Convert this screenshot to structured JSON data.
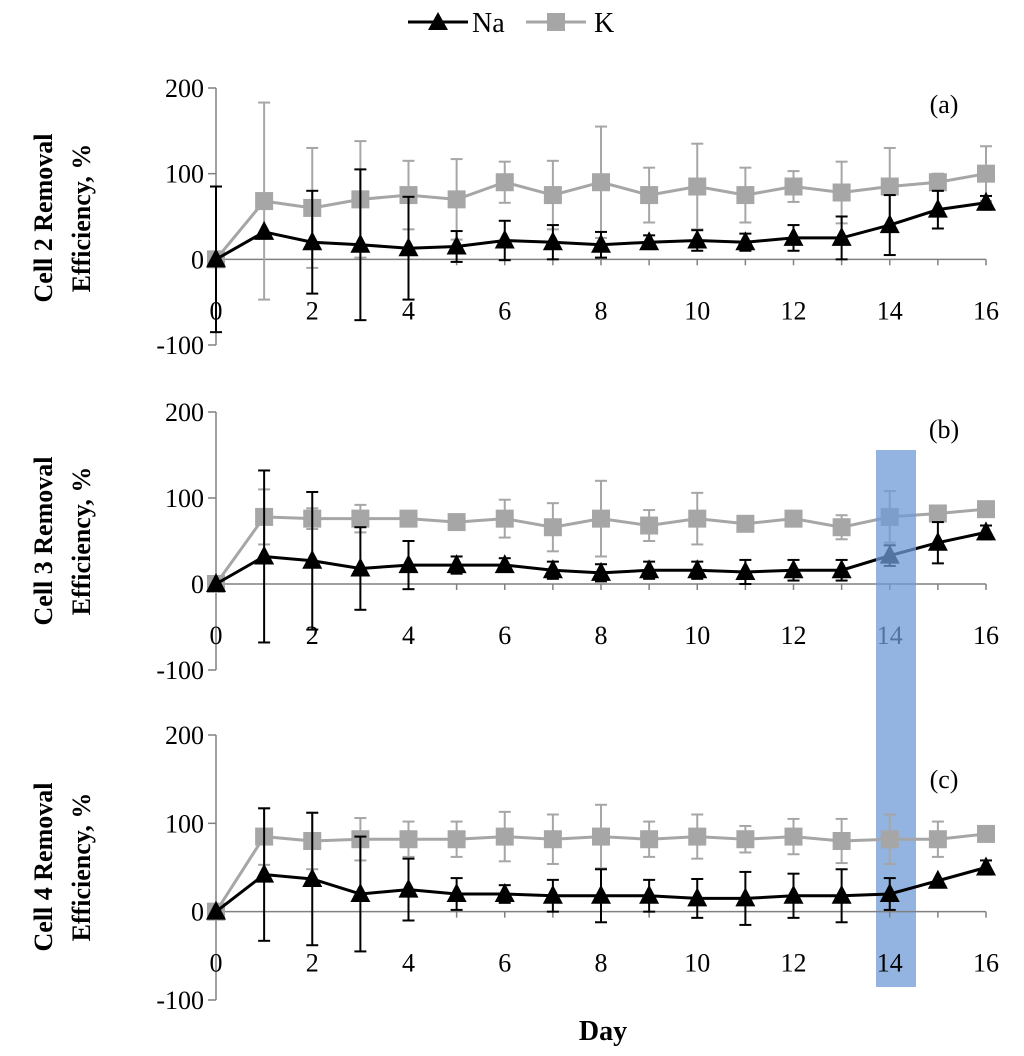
{
  "legend": {
    "na_label": "Na",
    "k_label": "K"
  },
  "colors": {
    "na": "#000000",
    "k": "#a6a6a6",
    "highlight": "#6f9bd5"
  },
  "xlabel": "Day",
  "chart_data": [
    {
      "type": "line",
      "panel_label": "(a)",
      "ylabel_line1": "Cell 2 Removal",
      "ylabel_line2": "Efficiency, %",
      "x": [
        0,
        1,
        2,
        3,
        4,
        5,
        6,
        7,
        8,
        9,
        10,
        11,
        12,
        13,
        14,
        15,
        16
      ],
      "xticks": [
        "0",
        "2",
        "4",
        "6",
        "8",
        "10",
        "12",
        "14",
        "16"
      ],
      "yticks": [
        "200",
        "100",
        "0",
        "-100"
      ],
      "xlim": [
        0,
        16
      ],
      "ylim": [
        -100,
        200
      ],
      "series": [
        {
          "name": "Na",
          "values": [
            0,
            32,
            20,
            17,
            13,
            15,
            22,
            20,
            17,
            20,
            22,
            20,
            25,
            25,
            40,
            58,
            66
          ],
          "err": [
            85,
            0,
            60,
            88,
            60,
            18,
            23,
            20,
            15,
            8,
            12,
            10,
            15,
            25,
            35,
            22,
            8
          ]
        },
        {
          "name": "K",
          "values": [
            0,
            68,
            60,
            70,
            75,
            70,
            90,
            75,
            90,
            75,
            85,
            75,
            85,
            78,
            85,
            90,
            100
          ],
          "err": [
            0,
            115,
            70,
            68,
            40,
            47,
            24,
            40,
            65,
            32,
            50,
            32,
            18,
            36,
            45,
            10,
            32
          ]
        }
      ],
      "highlight_x": null
    },
    {
      "type": "line",
      "panel_label": "(b)",
      "ylabel_line1": "Cell 3 Removal",
      "ylabel_line2": "Efficiency, %",
      "x": [
        0,
        1,
        2,
        3,
        4,
        5,
        6,
        7,
        8,
        9,
        10,
        11,
        12,
        13,
        14,
        15,
        16
      ],
      "xticks": [
        "0",
        "2",
        "4",
        "6",
        "8",
        "10",
        "12",
        "14",
        "16"
      ],
      "yticks": [
        "200",
        "100",
        "0",
        "-100"
      ],
      "xlim": [
        0,
        16
      ],
      "ylim": [
        -100,
        200
      ],
      "series": [
        {
          "name": "Na",
          "values": [
            0,
            32,
            27,
            18,
            22,
            22,
            22,
            16,
            13,
            16,
            16,
            14,
            16,
            16,
            33,
            48,
            60
          ],
          "err": [
            0,
            100,
            80,
            48,
            28,
            10,
            8,
            10,
            10,
            10,
            10,
            14,
            12,
            12,
            12,
            24,
            8
          ]
        },
        {
          "name": "K",
          "values": [
            0,
            78,
            76,
            76,
            76,
            72,
            76,
            66,
            76,
            68,
            76,
            70,
            76,
            66,
            78,
            82,
            87
          ],
          "err": [
            0,
            32,
            12,
            16,
            0,
            0,
            22,
            28,
            44,
            18,
            30,
            0,
            0,
            14,
            30,
            0,
            8
          ]
        }
      ],
      "highlight_x": 14
    },
    {
      "type": "line",
      "panel_label": "(c)",
      "ylabel_line1": "Cell 4 Removal",
      "ylabel_line2": "Efficiency, %",
      "x": [
        0,
        1,
        2,
        3,
        4,
        5,
        6,
        7,
        8,
        9,
        10,
        11,
        12,
        13,
        14,
        15,
        16
      ],
      "xticks": [
        "0",
        "2",
        "4",
        "6",
        "8",
        "10",
        "12",
        "14",
        "16"
      ],
      "yticks": [
        "200",
        "100",
        "0",
        "-100"
      ],
      "xlim": [
        0,
        16
      ],
      "ylim": [
        -100,
        200
      ],
      "series": [
        {
          "name": "Na",
          "values": [
            0,
            42,
            37,
            20,
            25,
            20,
            20,
            18,
            18,
            18,
            15,
            15,
            18,
            18,
            20,
            35,
            50
          ],
          "err": [
            0,
            75,
            75,
            65,
            35,
            18,
            10,
            18,
            30,
            18,
            22,
            30,
            25,
            30,
            18,
            0,
            8
          ]
        },
        {
          "name": "K",
          "values": [
            0,
            85,
            80,
            82,
            82,
            82,
            85,
            82,
            85,
            82,
            85,
            82,
            85,
            80,
            82,
            82,
            88
          ],
          "err": [
            0,
            32,
            32,
            24,
            20,
            20,
            28,
            28,
            36,
            20,
            25,
            15,
            20,
            25,
            28,
            20,
            6
          ]
        }
      ],
      "highlight_x": 14
    }
  ]
}
